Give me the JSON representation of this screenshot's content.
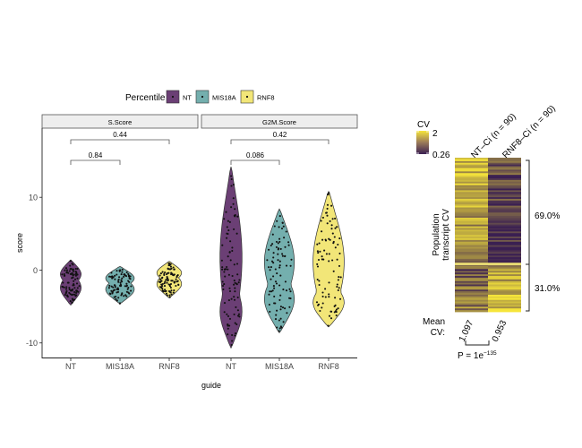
{
  "legend": {
    "title": "Percentile",
    "items": [
      {
        "label": "NT",
        "color": "#6B3F75"
      },
      {
        "label": "MIS18A",
        "color": "#74AFAE"
      },
      {
        "label": "RNF8",
        "color": "#F2E678"
      }
    ]
  },
  "chart_data": [
    {
      "type": "violin",
      "facets": [
        "S.Score",
        "G2M.Score"
      ],
      "xlabel": "guide",
      "ylabel": "score",
      "categories": [
        "NT",
        "MIS18A",
        "RNF8"
      ],
      "yticks": [
        10,
        0,
        -10
      ],
      "ylim": [
        -12,
        19.5
      ],
      "panels": [
        {
          "facet": "S.Score",
          "groups": [
            {
              "category": "NT",
              "min": -4.8,
              "max": 1.4,
              "center": -1.5
            },
            {
              "category": "MIS18A",
              "min": -4.6,
              "max": 0.5,
              "center": -1.3
            },
            {
              "category": "RNF8",
              "min": -3.8,
              "max": 1.2,
              "center": -1.4
            }
          ],
          "comparisons": [
            {
              "from": "NT",
              "to": "MIS18A",
              "p_label": "0.84"
            },
            {
              "from": "NT",
              "to": "RNF8",
              "p_label": "0.44"
            }
          ]
        },
        {
          "facet": "G2M.Score",
          "groups": [
            {
              "category": "NT",
              "min": -10.7,
              "max": 14.2,
              "center": -3.5
            },
            {
              "category": "MIS18A",
              "min": -8.6,
              "max": 8.4,
              "center": -2.0
            },
            {
              "category": "RNF8",
              "min": -7.8,
              "max": 10.8,
              "center": -3.0
            }
          ],
          "comparisons": [
            {
              "from": "NT",
              "to": "MIS18A",
              "p_label": "0.086"
            },
            {
              "from": "NT",
              "to": "RNF8",
              "p_label": "0.42"
            }
          ]
        }
      ]
    },
    {
      "type": "heatmap",
      "columns": [
        "NT–Ci (n = 90)",
        "RNF8–Ci (n = 90)"
      ],
      "ylabel_line1": "Population",
      "ylabel_line2": "transcript CV",
      "colorbar": {
        "title": "CV",
        "max_label": "2",
        "min_label": "0.26",
        "min": 0.26,
        "max": 2
      },
      "blocks": [
        {
          "label": "69.0%",
          "fraction": 0.69
        },
        {
          "label": "31.0%",
          "fraction": 0.31
        }
      ],
      "mean_cv": {
        "label_line1": "Mean",
        "label_line2": "CV:",
        "values": [
          "1.097",
          "0.953"
        ]
      },
      "pvalue": {
        "prefix": "P = 1e",
        "exponent": "−135"
      }
    }
  ]
}
